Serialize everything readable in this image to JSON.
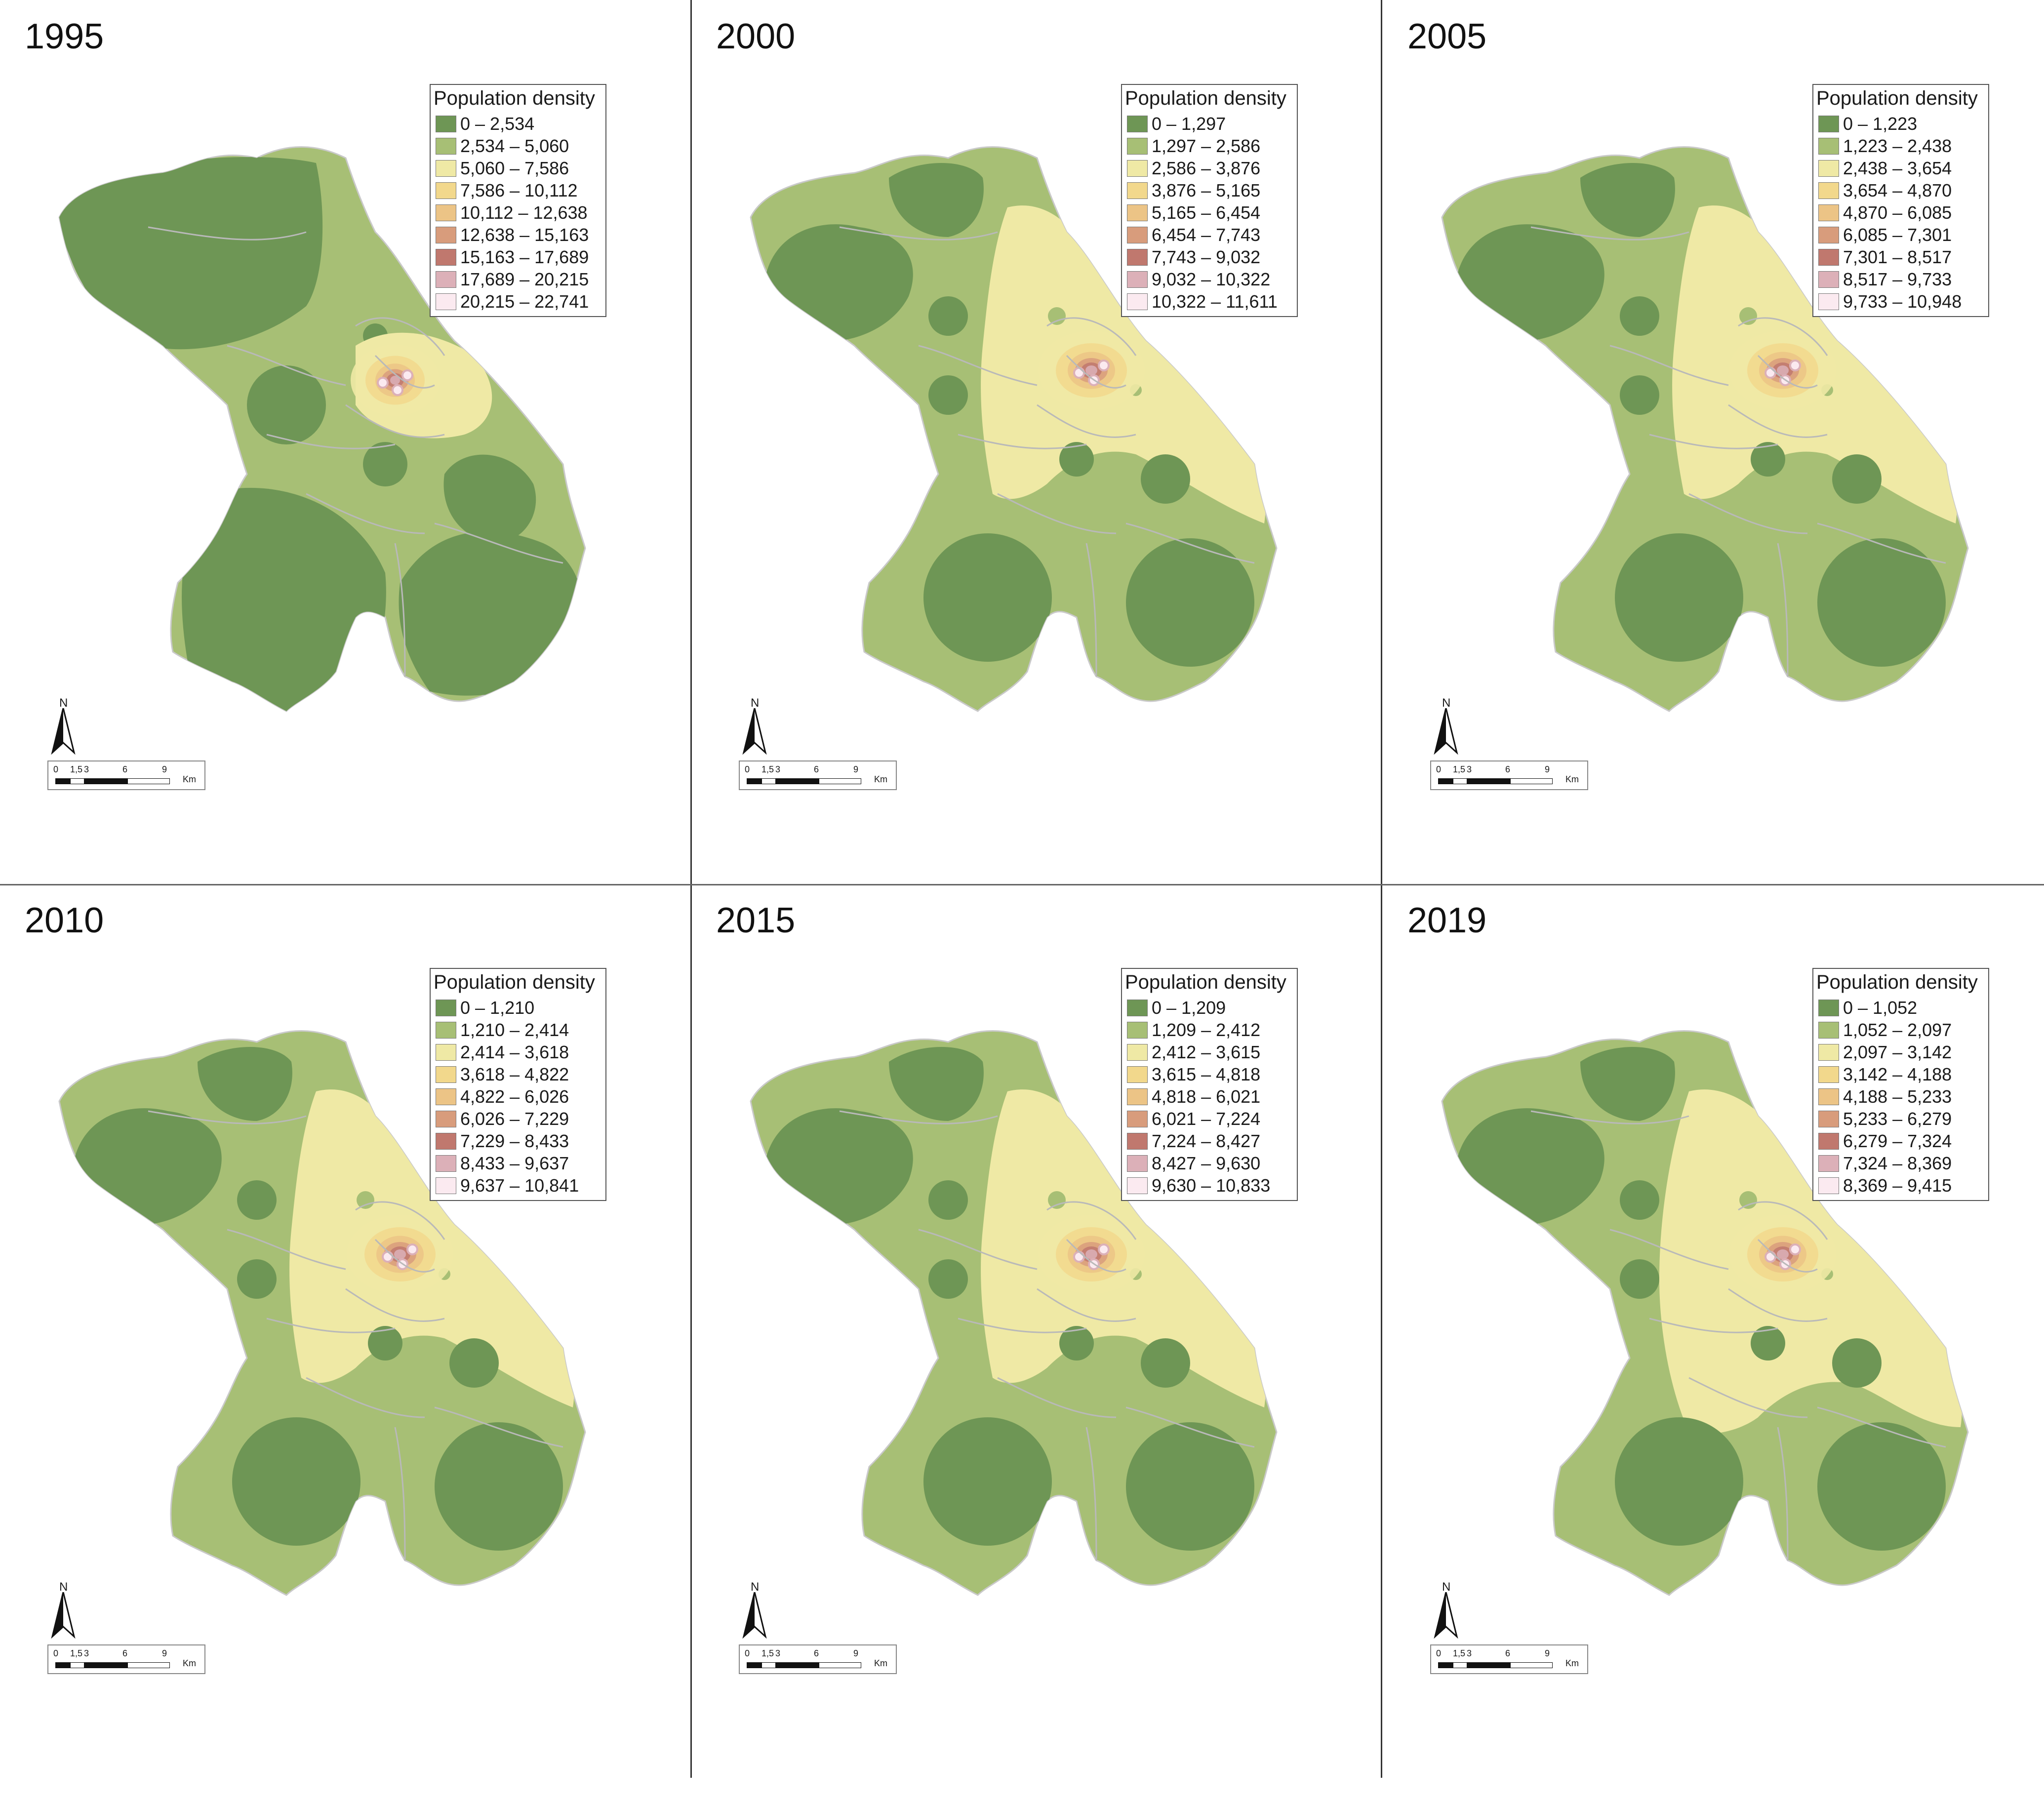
{
  "legend_title": "Population density",
  "scale_units": "Km",
  "north_label": "N",
  "scale_ticks": [
    "0",
    "1,5",
    "3",
    "6",
    "9"
  ],
  "colors": [
    "#6e9655",
    "#a7bf75",
    "#efe9a5",
    "#f2d88c",
    "#ecc486",
    "#d89c7c",
    "#c0786e",
    "#dcb0b8",
    "#fbeaf0"
  ],
  "panels": [
    {
      "year": "1995",
      "classes": [
        "0 – 2,534",
        "2,534 – 5,060",
        "5,060 – 7,586",
        "7,586 – 10,112",
        "10,112 – 12,638",
        "12,638 – 15,163",
        "15,163 – 17,689",
        "17,689 – 20,215",
        "20,215 – 22,741"
      ]
    },
    {
      "year": "2000",
      "classes": [
        "0 – 1,297",
        "1,297 – 2,586",
        "2,586 – 3,876",
        "3,876 – 5,165",
        "5,165 – 6,454",
        "6,454 – 7,743",
        "7,743 – 9,032",
        "9,032 – 10,322",
        "10,322 – 11,611"
      ]
    },
    {
      "year": "2005",
      "classes": [
        "0 – 1,223",
        "1,223 – 2,438",
        "2,438 – 3,654",
        "3,654 – 4,870",
        "4,870 – 6,085",
        "6,085 – 7,301",
        "7,301 – 8,517",
        "8,517 – 9,733",
        "9,733 – 10,948"
      ]
    },
    {
      "year": "2010",
      "classes": [
        "0 – 1,210",
        "1,210 – 2,414",
        "2,414 – 3,618",
        "3,618 – 4,822",
        "4,822 – 6,026",
        "6,026 – 7,229",
        "7,229 – 8,433",
        "8,433 – 9,637",
        "9,637 – 10,841"
      ]
    },
    {
      "year": "2015",
      "classes": [
        "0 – 1,209",
        "1,209 – 2,412",
        "2,412 – 3,615",
        "3,615 – 4,818",
        "4,818 – 6,021",
        "6,021 – 7,224",
        "7,224 – 8,427",
        "8,427 – 9,630",
        "9,630 – 10,833"
      ]
    },
    {
      "year": "2019",
      "classes": [
        "0 – 1,052",
        "1,052 – 2,097",
        "2,097 – 3,142",
        "3,142 – 4,188",
        "4,188 – 5,233",
        "5,233 – 6,279",
        "6,279 – 7,324",
        "7,324 – 8,369",
        "8,369 – 9,415"
      ]
    }
  ]
}
